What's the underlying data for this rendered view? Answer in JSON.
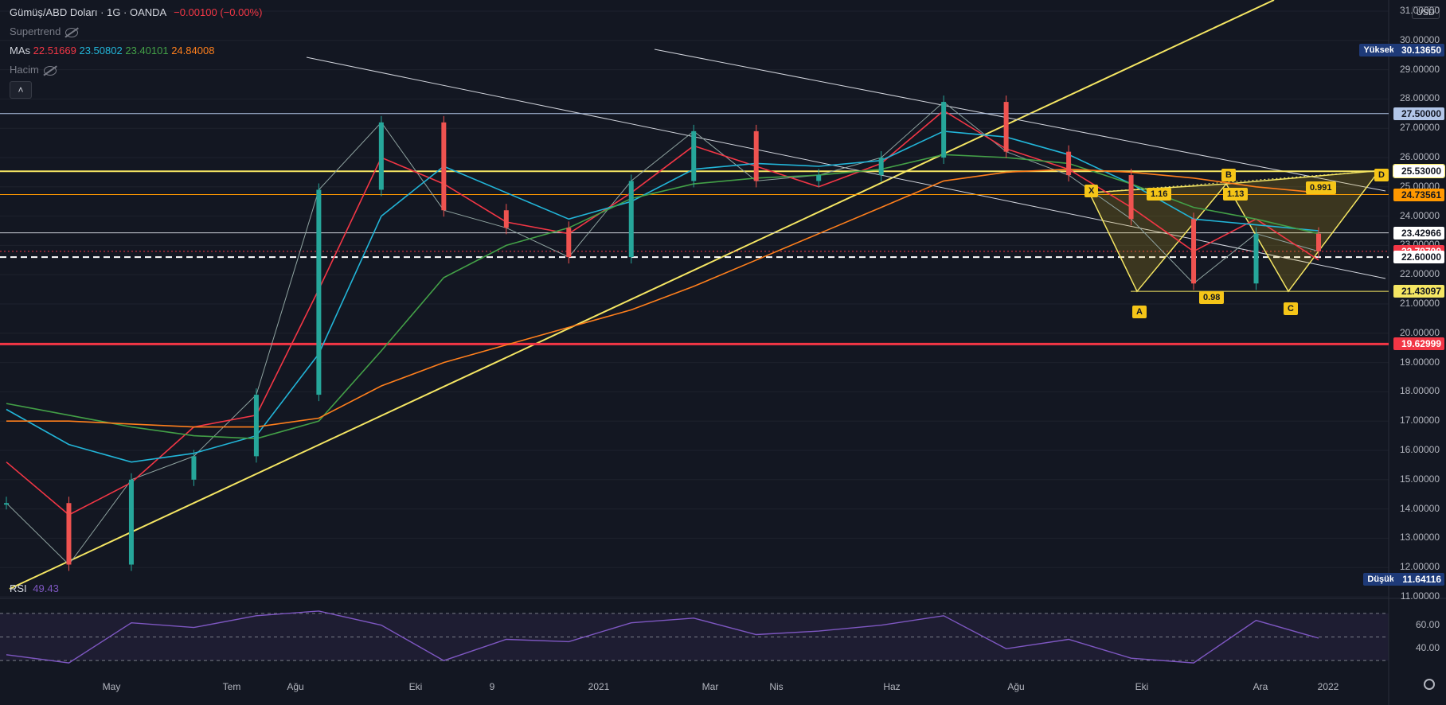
{
  "header": {
    "symbol": "Gümüş/ABD Doları · 1G · OANDA",
    "change": "−0.00100 (−0.00%)",
    "indicators": [
      {
        "name": "Supertrend"
      },
      {
        "name": "MAs",
        "values": [
          "22.51669",
          "23.50802",
          "23.40101",
          "24.84008"
        ]
      },
      {
        "name": "Hacim"
      }
    ]
  },
  "currency_button": "USD",
  "collapse_label": "˄",
  "rsi": {
    "label": "RSI",
    "value": "49.43",
    "levels": [
      "60.00",
      "40.00"
    ]
  },
  "markers": {
    "high_label": "Yüksek",
    "high_value": "30.13650",
    "low_label": "Düşük",
    "low_value": "11.64116"
  },
  "price_tags": [
    {
      "value": "27.50000",
      "bg": "#b2c6e8",
      "fg": "#131722"
    },
    {
      "value": "25.53000",
      "bg": "#ffffff",
      "fg": "#131722",
      "border": "#f5e663"
    },
    {
      "value": "24.73561",
      "bg": "#ff9800",
      "fg": "#131722"
    },
    {
      "value": "23.42966",
      "bg": "#ffffff",
      "fg": "#131722"
    },
    {
      "value": "22.79700",
      "bg": "#f23645",
      "fg": "#ffffff"
    },
    {
      "value": "22.60000",
      "bg": "#ffffff",
      "fg": "#131722"
    },
    {
      "value": "21.43097",
      "bg": "#f5e663",
      "fg": "#131722"
    },
    {
      "value": "19.62999",
      "bg": "#f23645",
      "fg": "#ffffff"
    }
  ],
  "harmonic": {
    "points": [
      "X",
      "A",
      "B",
      "C",
      "D"
    ],
    "ratios": [
      "1.16",
      "1.13",
      "0.98",
      "0.991"
    ]
  },
  "colors": {
    "up": "#26a69a",
    "down": "#ef5350",
    "ma1": "#f23645",
    "ma2": "#22b5d8",
    "ma3": "#43a047",
    "ma4": "#ff7f1c",
    "trend": "#f5e663",
    "rsi": "#7e57c2"
  },
  "chart_data": {
    "type": "line",
    "title": "Gümüş/ABD Doları · 1G · OANDA",
    "y_ticks": [
      "31.00000",
      "30.00000",
      "29.00000",
      "28.00000",
      "27.00000",
      "26.00000",
      "25.00000",
      "24.00000",
      "23.00000",
      "22.00000",
      "21.00000",
      "20.00000",
      "19.00000",
      "18.00000",
      "17.00000",
      "16.00000",
      "15.00000",
      "14.00000",
      "13.00000",
      "12.00000",
      "11.00000"
    ],
    "x_ticks": [
      "May",
      "Tem",
      "Ağu",
      "Eki",
      "9",
      "2021",
      "Mar",
      "Nis",
      "Haz",
      "Ağu",
      "Eki",
      "Ara",
      "2022"
    ],
    "ylim": [
      11,
      31
    ],
    "x": [
      "2020-03",
      "2020-04",
      "2020-05",
      "2020-06",
      "2020-07",
      "2020-08",
      "2020-09",
      "2020-10",
      "2020-11",
      "2020-12",
      "2021-01",
      "2021-02",
      "2021-03",
      "2021-04",
      "2021-05",
      "2021-06",
      "2021-07",
      "2021-08",
      "2021-09",
      "2021-10",
      "2021-11",
      "2021-12"
    ],
    "series": [
      {
        "name": "price",
        "values": [
          14.2,
          12.1,
          15.0,
          15.8,
          17.9,
          24.9,
          27.2,
          24.2,
          23.6,
          22.6,
          25.2,
          26.9,
          25.2,
          25.4,
          26.0,
          27.9,
          26.2,
          25.4,
          23.9,
          21.7,
          23.4,
          22.8
        ]
      },
      {
        "name": "MA 22.51669",
        "values": [
          15.6,
          13.8,
          14.9,
          16.8,
          17.2,
          21.5,
          26.0,
          25.1,
          23.8,
          23.4,
          24.8,
          26.4,
          25.7,
          25.0,
          25.8,
          27.6,
          26.3,
          25.6,
          24.3,
          22.8,
          23.9,
          22.5
        ]
      },
      {
        "name": "MA 23.50802",
        "values": [
          17.4,
          16.2,
          15.6,
          15.9,
          16.5,
          19.3,
          24.0,
          25.7,
          24.8,
          23.9,
          24.5,
          25.6,
          25.8,
          25.7,
          25.9,
          26.9,
          26.7,
          26.1,
          25.1,
          23.9,
          23.7,
          23.5
        ]
      },
      {
        "name": "MA 23.40101",
        "values": [
          17.6,
          17.2,
          16.8,
          16.5,
          16.4,
          17.0,
          19.4,
          21.9,
          23.0,
          23.6,
          24.6,
          25.1,
          25.3,
          25.4,
          25.6,
          26.1,
          26.0,
          25.8,
          25.1,
          24.3,
          23.9,
          23.4
        ]
      },
      {
        "name": "MA 24.84008",
        "values": [
          17.0,
          17.0,
          16.9,
          16.8,
          16.8,
          17.1,
          18.2,
          19.0,
          19.6,
          20.2,
          20.8,
          21.6,
          22.5,
          23.4,
          24.3,
          25.2,
          25.5,
          25.6,
          25.5,
          25.3,
          25.0,
          24.8
        ]
      }
    ],
    "rsi": {
      "levels": [
        60,
        40
      ],
      "values": [
        35,
        28,
        62,
        58,
        68,
        72,
        60,
        30,
        48,
        46,
        62,
        66,
        52,
        55,
        60,
        68,
        40,
        48,
        32,
        28,
        64,
        49
      ]
    }
  }
}
